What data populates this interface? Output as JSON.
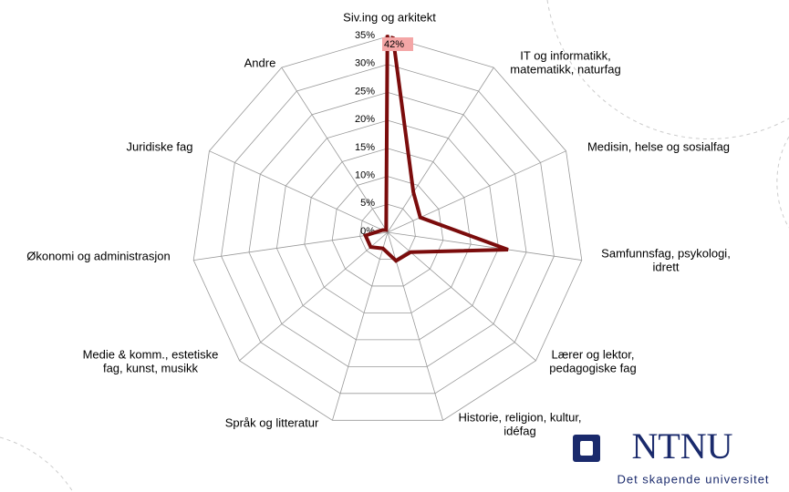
{
  "chart_data": {
    "type": "radar",
    "categories": [
      "Siv.ing og arkitekt",
      "IT og informatikk,\nmatematikk, naturfag",
      "Medisin, helse og sosialfag",
      "Samfunnsfag, psykologi,\nidrett",
      "Lærer og lektor,\npedagogiske fag",
      "Historie, religion, kultur,\nidéfag",
      "Språk og litteratur",
      "Medie & komm., estetiske\nfag, kunst, musikk",
      "Økonomi og administrasjon",
      "Juridiske fag",
      "Andre"
    ],
    "series": [
      {
        "color": "#7b0c0c",
        "values": [
          42,
          8.5,
          6.4,
          21.7,
          5.4,
          5.3,
          3,
          4,
          4,
          1,
          0.5
        ],
        "value_labels": [
          "42%",
          null,
          null,
          null,
          null,
          null,
          null,
          null,
          null,
          null,
          null
        ]
      }
    ],
    "ylim": [
      0,
      35
    ],
    "yticks": [
      {
        "value": 0,
        "label": "0%"
      },
      {
        "value": 5,
        "label": "5%"
      },
      {
        "value": 10,
        "label": "10%"
      },
      {
        "value": 15,
        "label": "15%"
      },
      {
        "value": 20,
        "label": "20%"
      },
      {
        "value": 25,
        "label": "25%"
      },
      {
        "value": 30,
        "label": "30%"
      },
      {
        "value": 35,
        "label": "35%"
      }
    ],
    "grid": true
  },
  "branding": {
    "logo": "NTNU",
    "tagline": "Det skapende universitet"
  }
}
